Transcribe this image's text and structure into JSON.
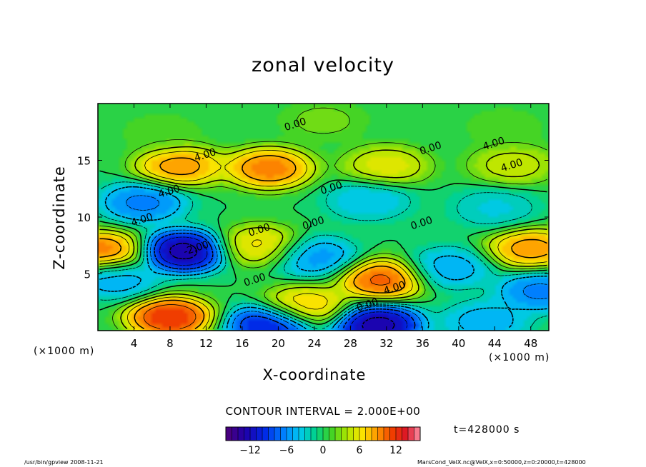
{
  "chart_data": {
    "type": "heatmap",
    "title": "zonal velocity",
    "xlabel": "X-coordinate",
    "ylabel": "Z-coordinate",
    "x_unit": "(×1000 m)",
    "y_unit": "(×1000 m)",
    "xlim": [
      0,
      50
    ],
    "ylim": [
      0,
      20
    ],
    "xticks": [
      4,
      8,
      12,
      16,
      20,
      24,
      28,
      32,
      36,
      40,
      44,
      48
    ],
    "yticks": [
      5,
      10,
      15
    ],
    "contour_interval_label": "CONTOUR INTERVAL = 2.000E+00",
    "contour_labels": [
      "0.00",
      "4.00",
      "0.00",
      "4.00",
      "4.00",
      "0.00",
      "4.00",
      "0.00",
      "0.00",
      "0.00",
      "0.00",
      "4.00",
      "0.00",
      "4.00",
      "-2.00"
    ],
    "colorbar": {
      "range": [
        -16,
        16
      ],
      "ticks": [
        -12,
        -6,
        0,
        6,
        12
      ],
      "tick_labels": [
        "−12",
        "−6",
        "0",
        "6",
        "12"
      ]
    },
    "time_label": "t=428000 s",
    "features": [
      {
        "x": 7,
        "z": 17.5,
        "value": 2
      },
      {
        "x": 25,
        "z": 18.5,
        "value": 3
      },
      {
        "x": 45,
        "z": 18,
        "value": 2
      },
      {
        "x": 9,
        "z": 14.5,
        "value": 11
      },
      {
        "x": 19,
        "z": 14.3,
        "value": 12
      },
      {
        "x": 32,
        "z": 14.5,
        "value": 7
      },
      {
        "x": 46,
        "z": 14.6,
        "value": 6
      },
      {
        "x": 5,
        "z": 11.3,
        "value": -8
      },
      {
        "x": 30,
        "z": 11.5,
        "value": -5
      },
      {
        "x": 44,
        "z": 10.8,
        "value": -4
      },
      {
        "x": 9.5,
        "z": 7,
        "value": -16
      },
      {
        "x": 18,
        "z": 7.5,
        "value": 8
      },
      {
        "x": 24,
        "z": 6.5,
        "value": -7
      },
      {
        "x": 31.5,
        "z": 4.5,
        "value": 13
      },
      {
        "x": 39,
        "z": 5.5,
        "value": -6
      },
      {
        "x": 48,
        "z": 7.2,
        "value": 11
      },
      {
        "x": 0.5,
        "z": 7,
        "value": 12
      },
      {
        "x": 8,
        "z": 1.2,
        "value": 15
      },
      {
        "x": 19,
        "z": 0.5,
        "value": -13
      },
      {
        "x": 23,
        "z": 2.2,
        "value": 9
      },
      {
        "x": 31,
        "z": 0.5,
        "value": -16
      },
      {
        "x": 43,
        "z": 0.8,
        "value": -6
      },
      {
        "x": 49,
        "z": 3.5,
        "value": -8
      },
      {
        "x": 2,
        "z": 4.5,
        "value": -6
      }
    ]
  },
  "footer": {
    "left": "/usr/bin/gpview   2008-11-21",
    "right": "MarsCond_VelX.nc@VelX,x=0:50000,z=0:20000,t=428000"
  }
}
